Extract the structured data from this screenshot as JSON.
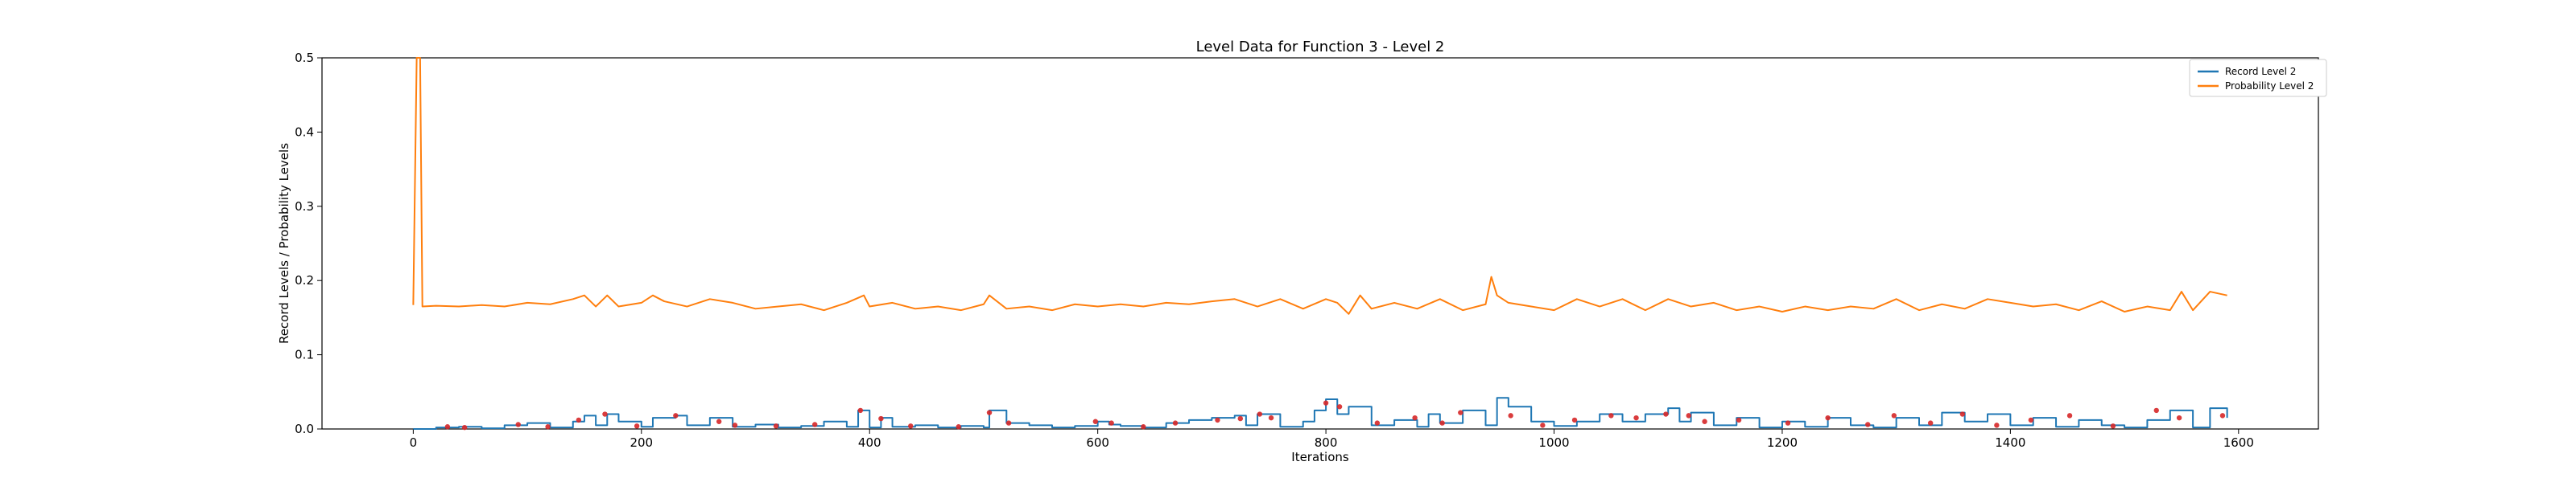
{
  "chart_data": {
    "type": "line",
    "title": "Level Data for Function 3 - Level 2",
    "xlabel": "Iterations",
    "ylabel": "Record Levels / Probability Levels",
    "xlim": [
      -80,
      1670
    ],
    "ylim": [
      0,
      0.5
    ],
    "xticks": [
      0,
      200,
      400,
      600,
      800,
      1000,
      1200,
      1400,
      1600
    ],
    "yticks": [
      0.0,
      0.1,
      0.2,
      0.3,
      0.4,
      0.5
    ],
    "xtick_labels": [
      "0",
      "200",
      "400",
      "600",
      "800",
      "1000",
      "1200",
      "1400",
      "1600"
    ],
    "ytick_labels": [
      "0.0",
      "0.1",
      "0.2",
      "0.3",
      "0.4",
      "0.5"
    ],
    "grid": false,
    "legend": {
      "placement": "top-right",
      "entries": [
        "Record Level 2",
        "Probability Level 2"
      ]
    },
    "series": [
      {
        "name": "Record Level 2",
        "color": "#1f77b4",
        "step": true,
        "x": [
          0,
          20,
          40,
          60,
          80,
          100,
          120,
          140,
          150,
          160,
          170,
          180,
          200,
          210,
          230,
          240,
          260,
          280,
          300,
          320,
          340,
          360,
          380,
          390,
          400,
          410,
          420,
          440,
          460,
          480,
          500,
          505,
          520,
          540,
          560,
          580,
          600,
          610,
          620,
          640,
          660,
          680,
          700,
          720,
          730,
          740,
          760,
          780,
          790,
          800,
          810,
          820,
          840,
          860,
          880,
          890,
          900,
          920,
          940,
          950,
          960,
          980,
          1000,
          1020,
          1040,
          1060,
          1080,
          1100,
          1110,
          1120,
          1140,
          1160,
          1180,
          1200,
          1220,
          1240,
          1260,
          1280,
          1300,
          1320,
          1340,
          1360,
          1380,
          1400,
          1420,
          1440,
          1460,
          1480,
          1500,
          1520,
          1540,
          1560,
          1575,
          1590
        ],
        "y": [
          0,
          0.002,
          0.003,
          0.001,
          0.005,
          0.008,
          0.002,
          0.01,
          0.018,
          0.005,
          0.02,
          0.01,
          0.003,
          0.015,
          0.018,
          0.005,
          0.015,
          0.003,
          0.006,
          0.002,
          0.004,
          0.01,
          0.003,
          0.025,
          0.002,
          0.015,
          0.003,
          0.005,
          0.002,
          0.004,
          0.002,
          0.025,
          0.008,
          0.005,
          0.002,
          0.004,
          0.01,
          0.006,
          0.004,
          0.002,
          0.008,
          0.012,
          0.015,
          0.018,
          0.005,
          0.02,
          0.003,
          0.01,
          0.025,
          0.04,
          0.02,
          0.03,
          0.005,
          0.012,
          0.003,
          0.02,
          0.008,
          0.025,
          0.005,
          0.042,
          0.03,
          0.01,
          0.004,
          0.01,
          0.02,
          0.01,
          0.02,
          0.028,
          0.01,
          0.022,
          0.005,
          0.015,
          0.002,
          0.01,
          0.003,
          0.015,
          0.005,
          0.002,
          0.015,
          0.005,
          0.022,
          0.01,
          0.02,
          0.005,
          0.015,
          0.003,
          0.012,
          0.005,
          0.002,
          0.012,
          0.025,
          0.002,
          0.028,
          0.015
        ]
      },
      {
        "name": "Probability Level 2",
        "color": "#ff7f0e",
        "x": [
          0,
          3,
          6,
          8,
          20,
          40,
          60,
          80,
          100,
          120,
          140,
          150,
          160,
          170,
          180,
          200,
          210,
          220,
          240,
          260,
          280,
          300,
          320,
          340,
          360,
          380,
          395,
          400,
          420,
          440,
          460,
          480,
          500,
          505,
          520,
          540,
          560,
          580,
          600,
          620,
          640,
          660,
          680,
          700,
          720,
          740,
          760,
          780,
          800,
          810,
          820,
          830,
          840,
          860,
          880,
          900,
          920,
          940,
          945,
          950,
          960,
          980,
          1000,
          1020,
          1040,
          1060,
          1080,
          1100,
          1120,
          1140,
          1160,
          1180,
          1200,
          1220,
          1240,
          1260,
          1280,
          1300,
          1320,
          1340,
          1360,
          1380,
          1400,
          1420,
          1440,
          1460,
          1480,
          1500,
          1520,
          1540,
          1550,
          1560,
          1575,
          1590
        ],
        "y": [
          0.167,
          0.5,
          0.5,
          0.165,
          0.166,
          0.165,
          0.167,
          0.165,
          0.17,
          0.168,
          0.175,
          0.18,
          0.165,
          0.18,
          0.165,
          0.17,
          0.18,
          0.172,
          0.165,
          0.175,
          0.17,
          0.162,
          0.165,
          0.168,
          0.16,
          0.17,
          0.18,
          0.165,
          0.17,
          0.162,
          0.165,
          0.16,
          0.168,
          0.18,
          0.162,
          0.165,
          0.16,
          0.168,
          0.165,
          0.168,
          0.165,
          0.17,
          0.168,
          0.172,
          0.175,
          0.165,
          0.175,
          0.162,
          0.175,
          0.17,
          0.155,
          0.18,
          0.162,
          0.17,
          0.162,
          0.175,
          0.16,
          0.168,
          0.205,
          0.18,
          0.17,
          0.165,
          0.16,
          0.175,
          0.165,
          0.175,
          0.16,
          0.175,
          0.165,
          0.17,
          0.16,
          0.165,
          0.158,
          0.165,
          0.16,
          0.165,
          0.162,
          0.175,
          0.16,
          0.168,
          0.162,
          0.175,
          0.17,
          0.165,
          0.168,
          0.16,
          0.172,
          0.158,
          0.165,
          0.16,
          0.185,
          0.16,
          0.185,
          0.18
        ]
      }
    ],
    "markers": {
      "color": "#d62728",
      "points": [
        [
          30,
          0.003
        ],
        [
          45,
          0.002
        ],
        [
          92,
          0.006
        ],
        [
          118,
          0.003
        ],
        [
          145,
          0.012
        ],
        [
          168,
          0.02
        ],
        [
          196,
          0.004
        ],
        [
          230,
          0.018
        ],
        [
          268,
          0.01
        ],
        [
          282,
          0.005
        ],
        [
          318,
          0.004
        ],
        [
          352,
          0.006
        ],
        [
          392,
          0.025
        ],
        [
          410,
          0.014
        ],
        [
          436,
          0.004
        ],
        [
          478,
          0.003
        ],
        [
          505,
          0.022
        ],
        [
          522,
          0.008
        ],
        [
          598,
          0.01
        ],
        [
          612,
          0.008
        ],
        [
          640,
          0.003
        ],
        [
          668,
          0.008
        ],
        [
          705,
          0.012
        ],
        [
          725,
          0.014
        ],
        [
          742,
          0.02
        ],
        [
          752,
          0.015
        ],
        [
          800,
          0.035
        ],
        [
          812,
          0.03
        ],
        [
          845,
          0.008
        ],
        [
          878,
          0.015
        ],
        [
          902,
          0.008
        ],
        [
          918,
          0.022
        ],
        [
          962,
          0.018
        ],
        [
          990,
          0.005
        ],
        [
          1018,
          0.012
        ],
        [
          1050,
          0.018
        ],
        [
          1072,
          0.015
        ],
        [
          1098,
          0.02
        ],
        [
          1118,
          0.018
        ],
        [
          1132,
          0.01
        ],
        [
          1162,
          0.012
        ],
        [
          1205,
          0.008
        ],
        [
          1240,
          0.015
        ],
        [
          1275,
          0.006
        ],
        [
          1298,
          0.018
        ],
        [
          1330,
          0.008
        ],
        [
          1358,
          0.02
        ],
        [
          1388,
          0.005
        ],
        [
          1418,
          0.012
        ],
        [
          1452,
          0.018
        ],
        [
          1490,
          0.004
        ],
        [
          1528,
          0.025
        ],
        [
          1548,
          0.015
        ],
        [
          1586,
          0.018
        ]
      ]
    }
  }
}
